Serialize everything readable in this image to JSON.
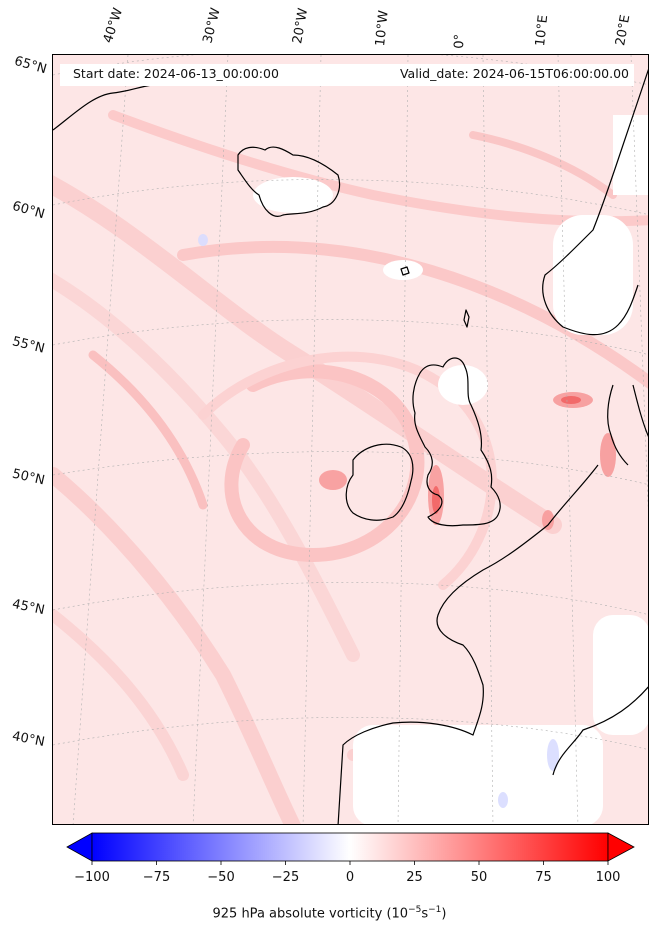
{
  "header": {
    "start_date": "Start date: 2024-06-13_00:00:00",
    "valid_date": "Valid_date: 2024-06-15T06:00:00.00"
  },
  "longitude_labels": [
    "40°W",
    "30°W",
    "20°W",
    "10°W",
    "0°",
    "10°E",
    "20°E"
  ],
  "latitude_labels": [
    "65°N",
    "60°N",
    "55°N",
    "50°N",
    "45°N",
    "40°N"
  ],
  "colorbar": {
    "ticks": [
      "−100",
      "−75",
      "−50",
      "−25",
      "0",
      "25",
      "50",
      "75",
      "100"
    ],
    "label_main": "925 hPa absolute vorticity (10",
    "label_exp1": "−5",
    "label_mid": "s",
    "label_exp2": "−1",
    "label_end": ")",
    "range": [
      -100,
      100
    ],
    "extend": "both",
    "negative_color": "#0000ff",
    "zero_color": "#ffffff",
    "positive_color": "#ff0000"
  }
}
